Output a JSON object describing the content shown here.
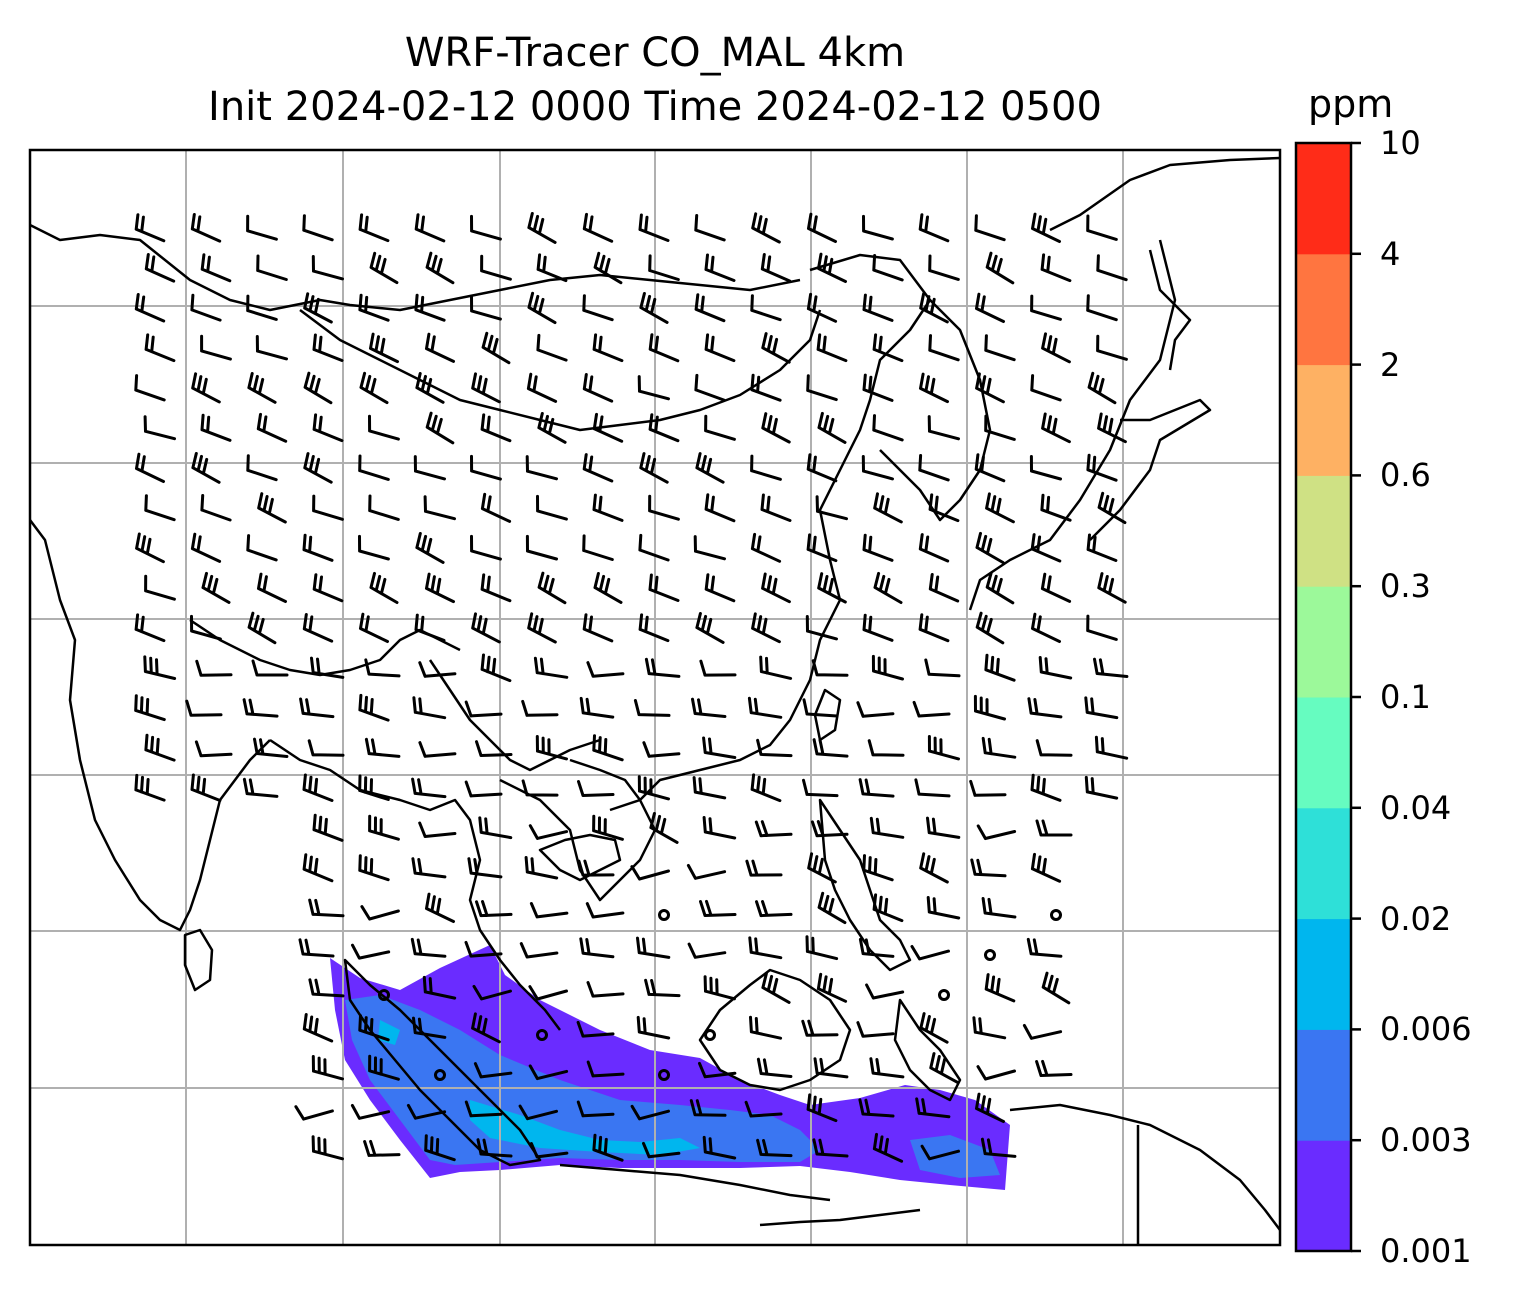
{
  "title": {
    "line1": "WRF-Tracer CO_MAL 4km",
    "line2": "Init 2024-02-12 0000 Time 2024-02-12 0500"
  },
  "colorbar": {
    "unit": "ppm",
    "levels": [
      "0.001",
      "0.003",
      "0.006",
      "0.02",
      "0.04",
      "0.1",
      "0.3",
      "0.6",
      "2",
      "4",
      "10"
    ],
    "colors": [
      "#6a2cff",
      "#3a76f2",
      "#00b6ee",
      "#2ee0d8",
      "#66fcc0",
      "#9cf99a",
      "#cfe184",
      "#feb163",
      "#ff7540",
      "#ff2c18"
    ]
  },
  "map": {
    "tracer_color_low": "#6a2cff",
    "tracer_color_mid": "#3a76f2",
    "tracer_color_high": "#00b6ee",
    "coastline_color": "#000000",
    "grid_color": "#b0b0b0",
    "wind_barbs": true,
    "gridlines": true
  }
}
